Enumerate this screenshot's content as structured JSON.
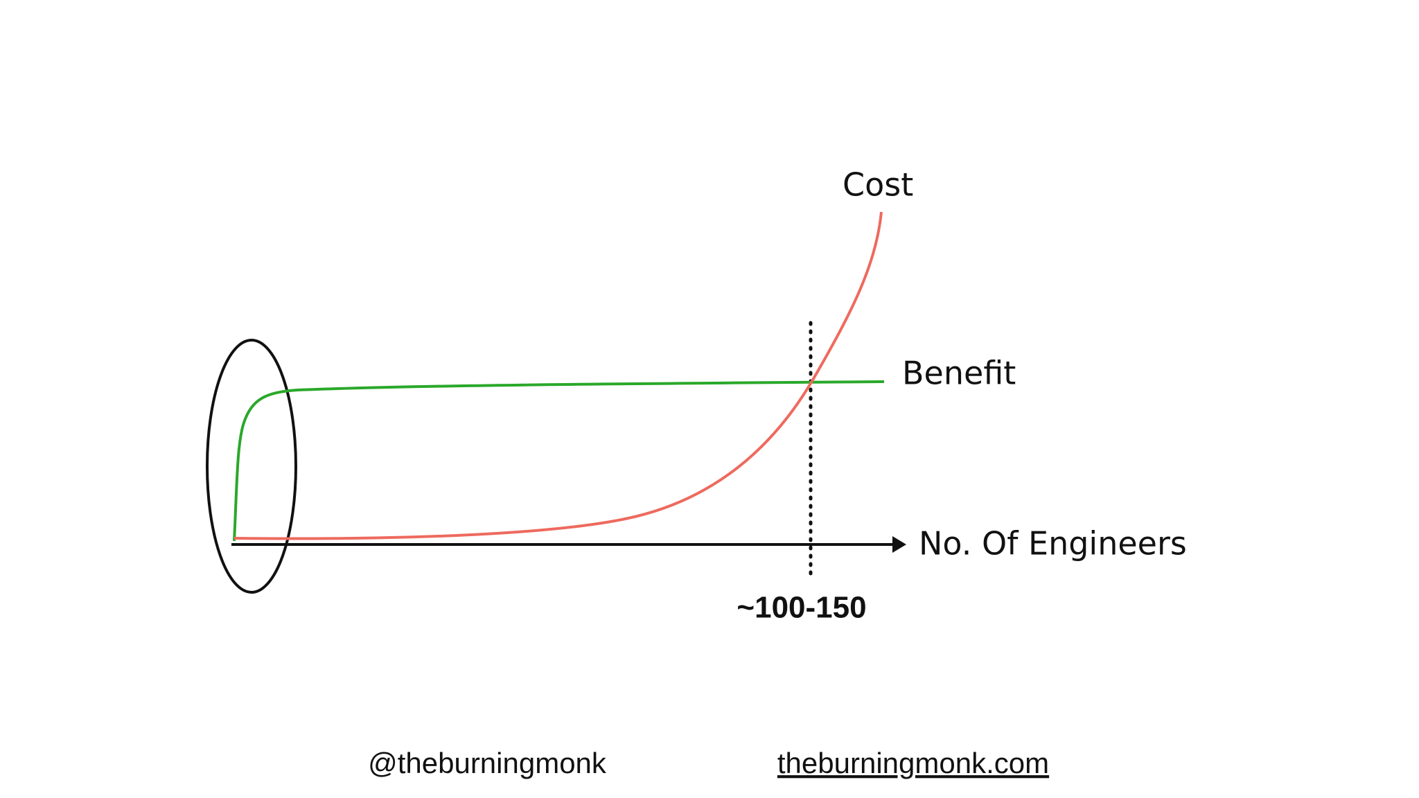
{
  "diagram": {
    "cost_label": "Cost",
    "benefit_label": "Benefit",
    "x_axis_label": "No. Of Engineers",
    "threshold_label": "~100-150"
  },
  "footer": {
    "handle": "@theburningmonk",
    "website": "theburningmonk.com"
  }
}
